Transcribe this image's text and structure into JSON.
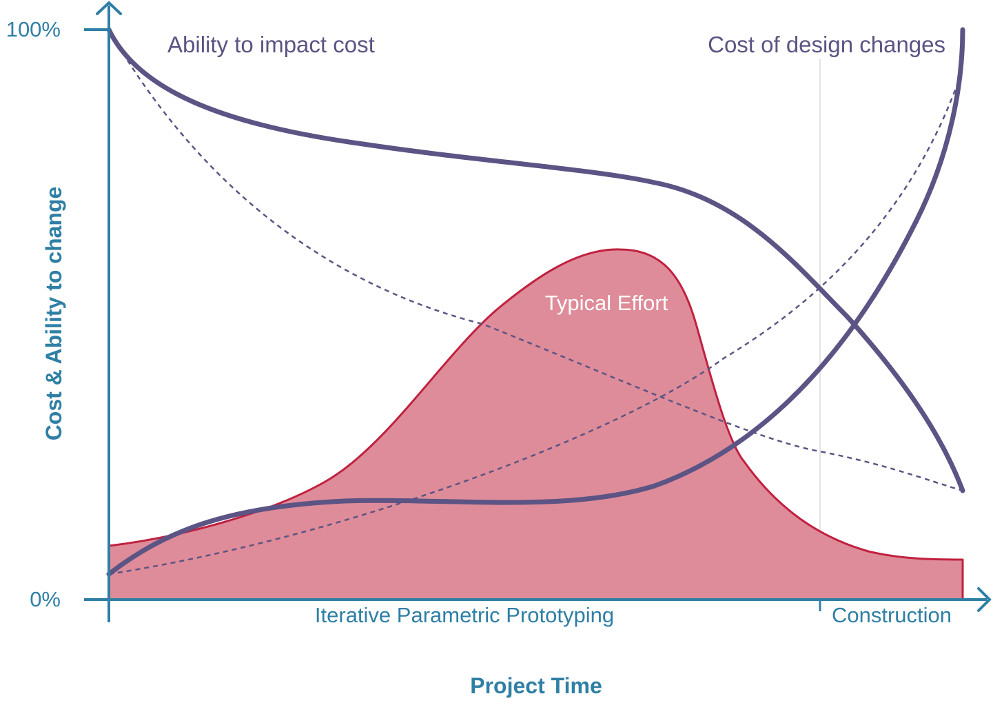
{
  "diagram": {
    "y_axis_title": "Cost & Ability to change",
    "x_axis_title": "Project Time",
    "y_tick_top": "100%",
    "y_tick_bottom": "0%",
    "phases": [
      {
        "label": "Iterative Parametric Prototyping"
      },
      {
        "label": "Construction"
      }
    ],
    "curves": {
      "ability": {
        "label": "Ability to impact cost",
        "color": "#5b5484"
      },
      "cost": {
        "label": "Cost of design changes",
        "color": "#5b5484"
      },
      "effort": {
        "label": "Typical Effort",
        "stroke": "#c0213f",
        "fill": "#de8c99"
      }
    },
    "colors": {
      "axis": "#2f7fa5",
      "phase_divider": "#e3e3e3"
    }
  }
}
